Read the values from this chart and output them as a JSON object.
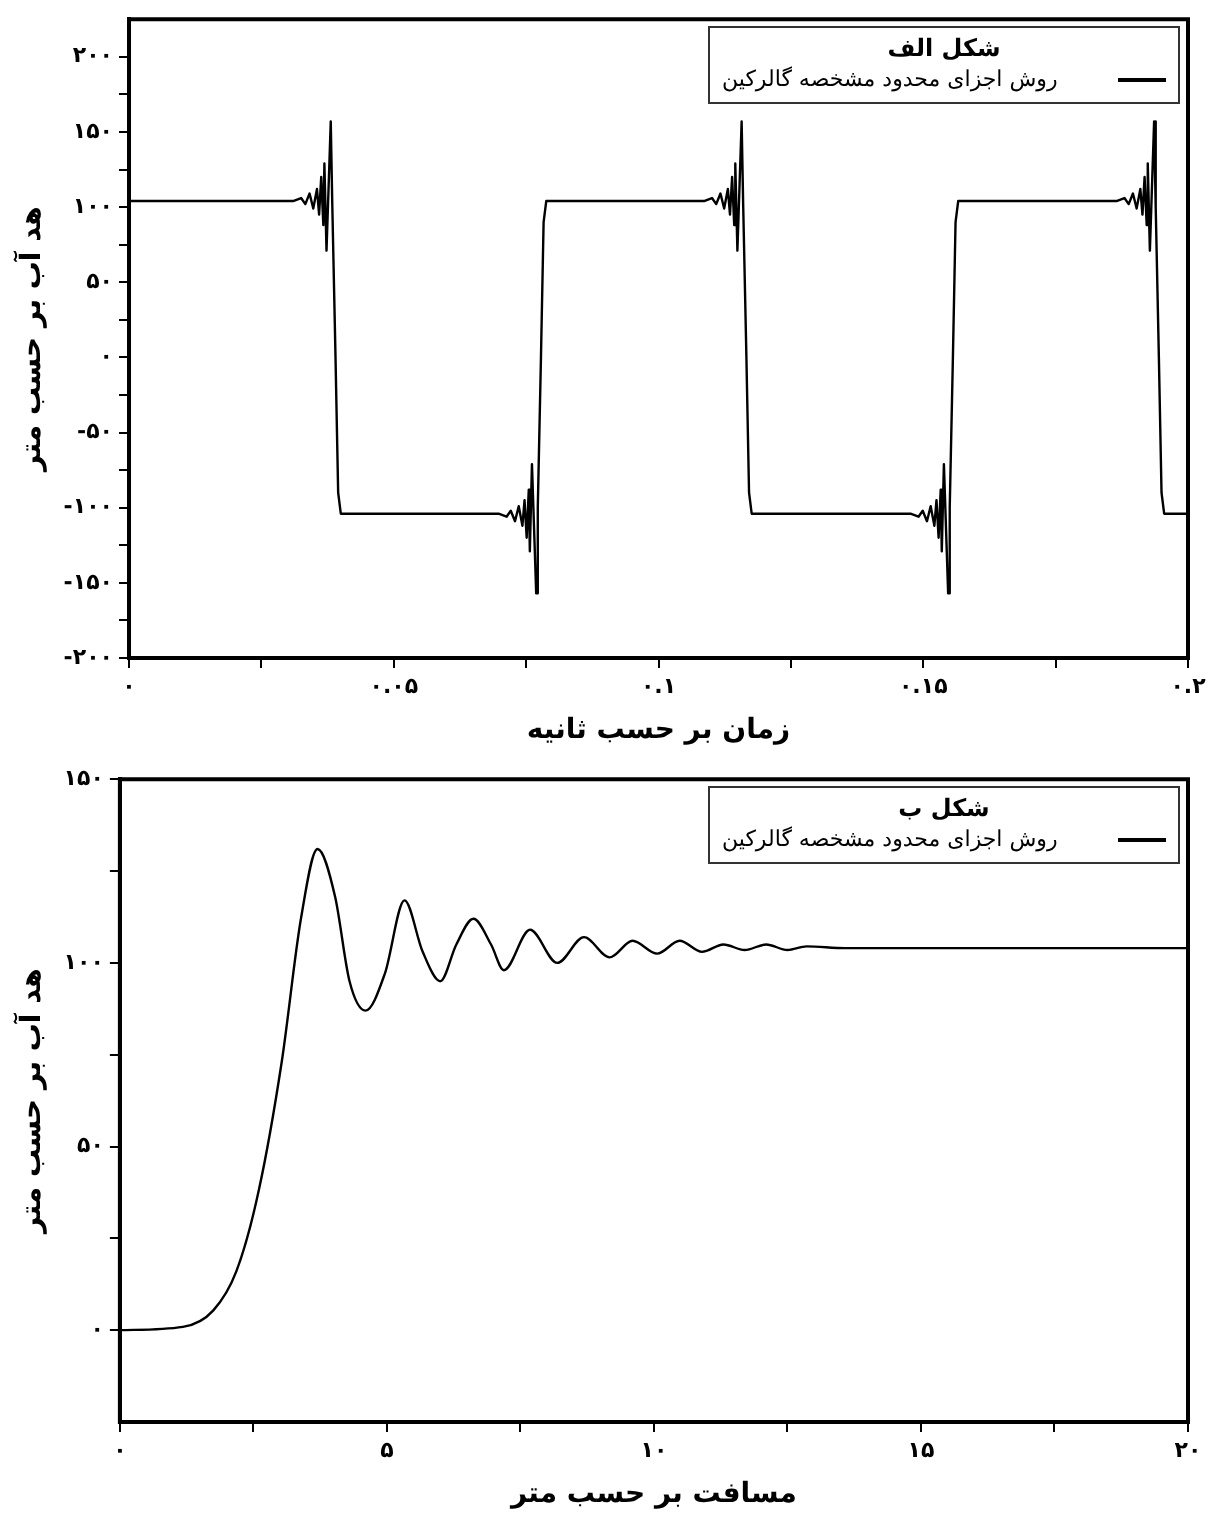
{
  "chart_data": [
    {
      "type": "line",
      "xlabel": "زمان بر حسب ثانیه",
      "ylabel": "هد آب بر حسب متر",
      "legend_title": "شکل الف",
      "legend": "top right",
      "grid": false,
      "xlim": [
        0,
        0.2
      ],
      "xticks": [
        {
          "value": 0,
          "label": "۰"
        },
        {
          "value": 0.025,
          "label": null
        },
        {
          "value": 0.05,
          "label": "۰.۰۵"
        },
        {
          "value": 0.075,
          "label": null
        },
        {
          "value": 0.1,
          "label": "۰.۱"
        },
        {
          "value": 0.125,
          "label": null
        },
        {
          "value": 0.15,
          "label": "۰.۱۵"
        },
        {
          "value": 0.175,
          "label": null
        },
        {
          "value": 0.2,
          "label": "۰.۲"
        }
      ],
      "ylim": [
        -200,
        225
      ],
      "yticks": [
        {
          "value": -200,
          "label": "-۲۰۰"
        },
        {
          "value": -175,
          "label": null
        },
        {
          "value": -150,
          "label": "-۱۵۰"
        },
        {
          "value": -125,
          "label": null
        },
        {
          "value": -100,
          "label": "-۱۰۰"
        },
        {
          "value": -75,
          "label": null
        },
        {
          "value": -50,
          "label": "-۵۰"
        },
        {
          "value": -25,
          "label": null
        },
        {
          "value": 0,
          "label": "۰"
        },
        {
          "value": 25,
          "label": null
        },
        {
          "value": 50,
          "label": "۵۰"
        },
        {
          "value": 75,
          "label": null
        },
        {
          "value": 100,
          "label": "۱۰۰"
        },
        {
          "value": 125,
          "label": null
        },
        {
          "value": 150,
          "label": "۱۵۰"
        },
        {
          "value": 175,
          "label": null
        },
        {
          "value": 200,
          "label": "۲۰۰"
        }
      ],
      "series": [
        {
          "name": "روش اجزای محدود مشخصه گالرکین",
          "color": "#000000",
          "x": [
            0,
            0.031,
            0.0325,
            0.0333,
            0.0341,
            0.0348,
            0.0355,
            0.0359,
            0.0363,
            0.0367,
            0.0369,
            0.0373,
            0.0381,
            0.0384,
            0.039,
            0.0395,
            0.04,
            0.0698,
            0.0713,
            0.0721,
            0.0729,
            0.0736,
            0.0743,
            0.0747,
            0.0751,
            0.0755,
            0.0757,
            0.0761,
            0.0769,
            0.0772,
            0.0778,
            0.0783,
            0.0788,
            0.1086,
            0.1101,
            0.1109,
            0.1117,
            0.1124,
            0.1131,
            0.1135,
            0.1139,
            0.1143,
            0.1145,
            0.1149,
            0.1157,
            0.116,
            0.1166,
            0.1171,
            0.1176,
            0.1476,
            0.1491,
            0.1499,
            0.1507,
            0.1514,
            0.1521,
            0.1525,
            0.1529,
            0.1533,
            0.1535,
            0.1539,
            0.1547,
            0.155,
            0.1556,
            0.1561,
            0.1566,
            0.1865,
            0.188,
            0.1888,
            0.1896,
            0.1903,
            0.191,
            0.1914,
            0.1918,
            0.1922,
            0.1924,
            0.1928,
            0.1936,
            0.1939,
            0.1945,
            0.195,
            0.1955,
            0.2
          ],
          "values": [
            104,
            104,
            106,
            102,
            109,
            99,
            112,
            95,
            120,
            88,
            129,
            71,
            157,
            100,
            0,
            -90,
            -104,
            -104,
            -106,
            -102,
            -109,
            -99,
            -112,
            -95,
            -120,
            -88,
            -129,
            -71,
            -157,
            -100,
            0,
            90,
            104,
            104,
            106,
            102,
            109,
            99,
            112,
            95,
            120,
            88,
            129,
            71,
            157,
            100,
            0,
            -90,
            -104,
            -104,
            -106,
            -102,
            -109,
            -99,
            -112,
            -95,
            -120,
            -88,
            -129,
            -71,
            -157,
            -100,
            0,
            90,
            104,
            104,
            106,
            102,
            109,
            99,
            112,
            95,
            120,
            88,
            129,
            71,
            157,
            100,
            0,
            -90,
            -104,
            -104
          ]
        }
      ]
    },
    {
      "type": "line",
      "xlabel": "مسافت بر حسب متر",
      "ylabel": "هد آب بر حسب متر",
      "legend_title": "شکل ب",
      "legend": "top right",
      "grid": false,
      "xlim": [
        0,
        20
      ],
      "xticks": [
        {
          "value": 0,
          "label": "۰"
        },
        {
          "value": 2.5,
          "label": null
        },
        {
          "value": 5,
          "label": "۵"
        },
        {
          "value": 7.5,
          "label": null
        },
        {
          "value": 10,
          "label": "۱۰"
        },
        {
          "value": 12.5,
          "label": null
        },
        {
          "value": 15,
          "label": "۱۵"
        },
        {
          "value": 17.5,
          "label": null
        },
        {
          "value": 20,
          "label": "۲۰"
        }
      ],
      "ylim": [
        -25,
        150
      ],
      "yticks": [
        {
          "value": 0,
          "label": "۰"
        },
        {
          "value": 25,
          "label": null
        },
        {
          "value": 50,
          "label": "۵۰"
        },
        {
          "value": 75,
          "label": null
        },
        {
          "value": 100,
          "label": "۱۰۰"
        },
        {
          "value": 125,
          "label": null
        },
        {
          "value": 150,
          "label": "۱۵۰"
        }
      ],
      "series": [
        {
          "name": "روش اجزای محدود مشخصه گالرکین",
          "color": "#000000",
          "x": [
            0,
            1.18,
            1.75,
            2.18,
            2.6,
            3.03,
            3.39,
            3.7,
            4.03,
            4.3,
            4.6,
            4.96,
            5.33,
            5.67,
            6.0,
            6.3,
            6.62,
            6.95,
            7.19,
            7.68,
            8.19,
            8.69,
            9.17,
            9.6,
            10.06,
            10.48,
            10.9,
            11.3,
            11.7,
            12.1,
            12.5,
            12.86,
            13.58,
            20
          ],
          "values": [
            0,
            0.9,
            5.4,
            16,
            38,
            73,
            112,
            131,
            118,
            95,
            87,
            97,
            117,
            103,
            95,
            105,
            112,
            105,
            98,
            109,
            100,
            107,
            101.5,
            106,
            102.5,
            106,
            103,
            105,
            103.5,
            105,
            103.5,
            104.5,
            104,
            104
          ]
        }
      ]
    }
  ]
}
